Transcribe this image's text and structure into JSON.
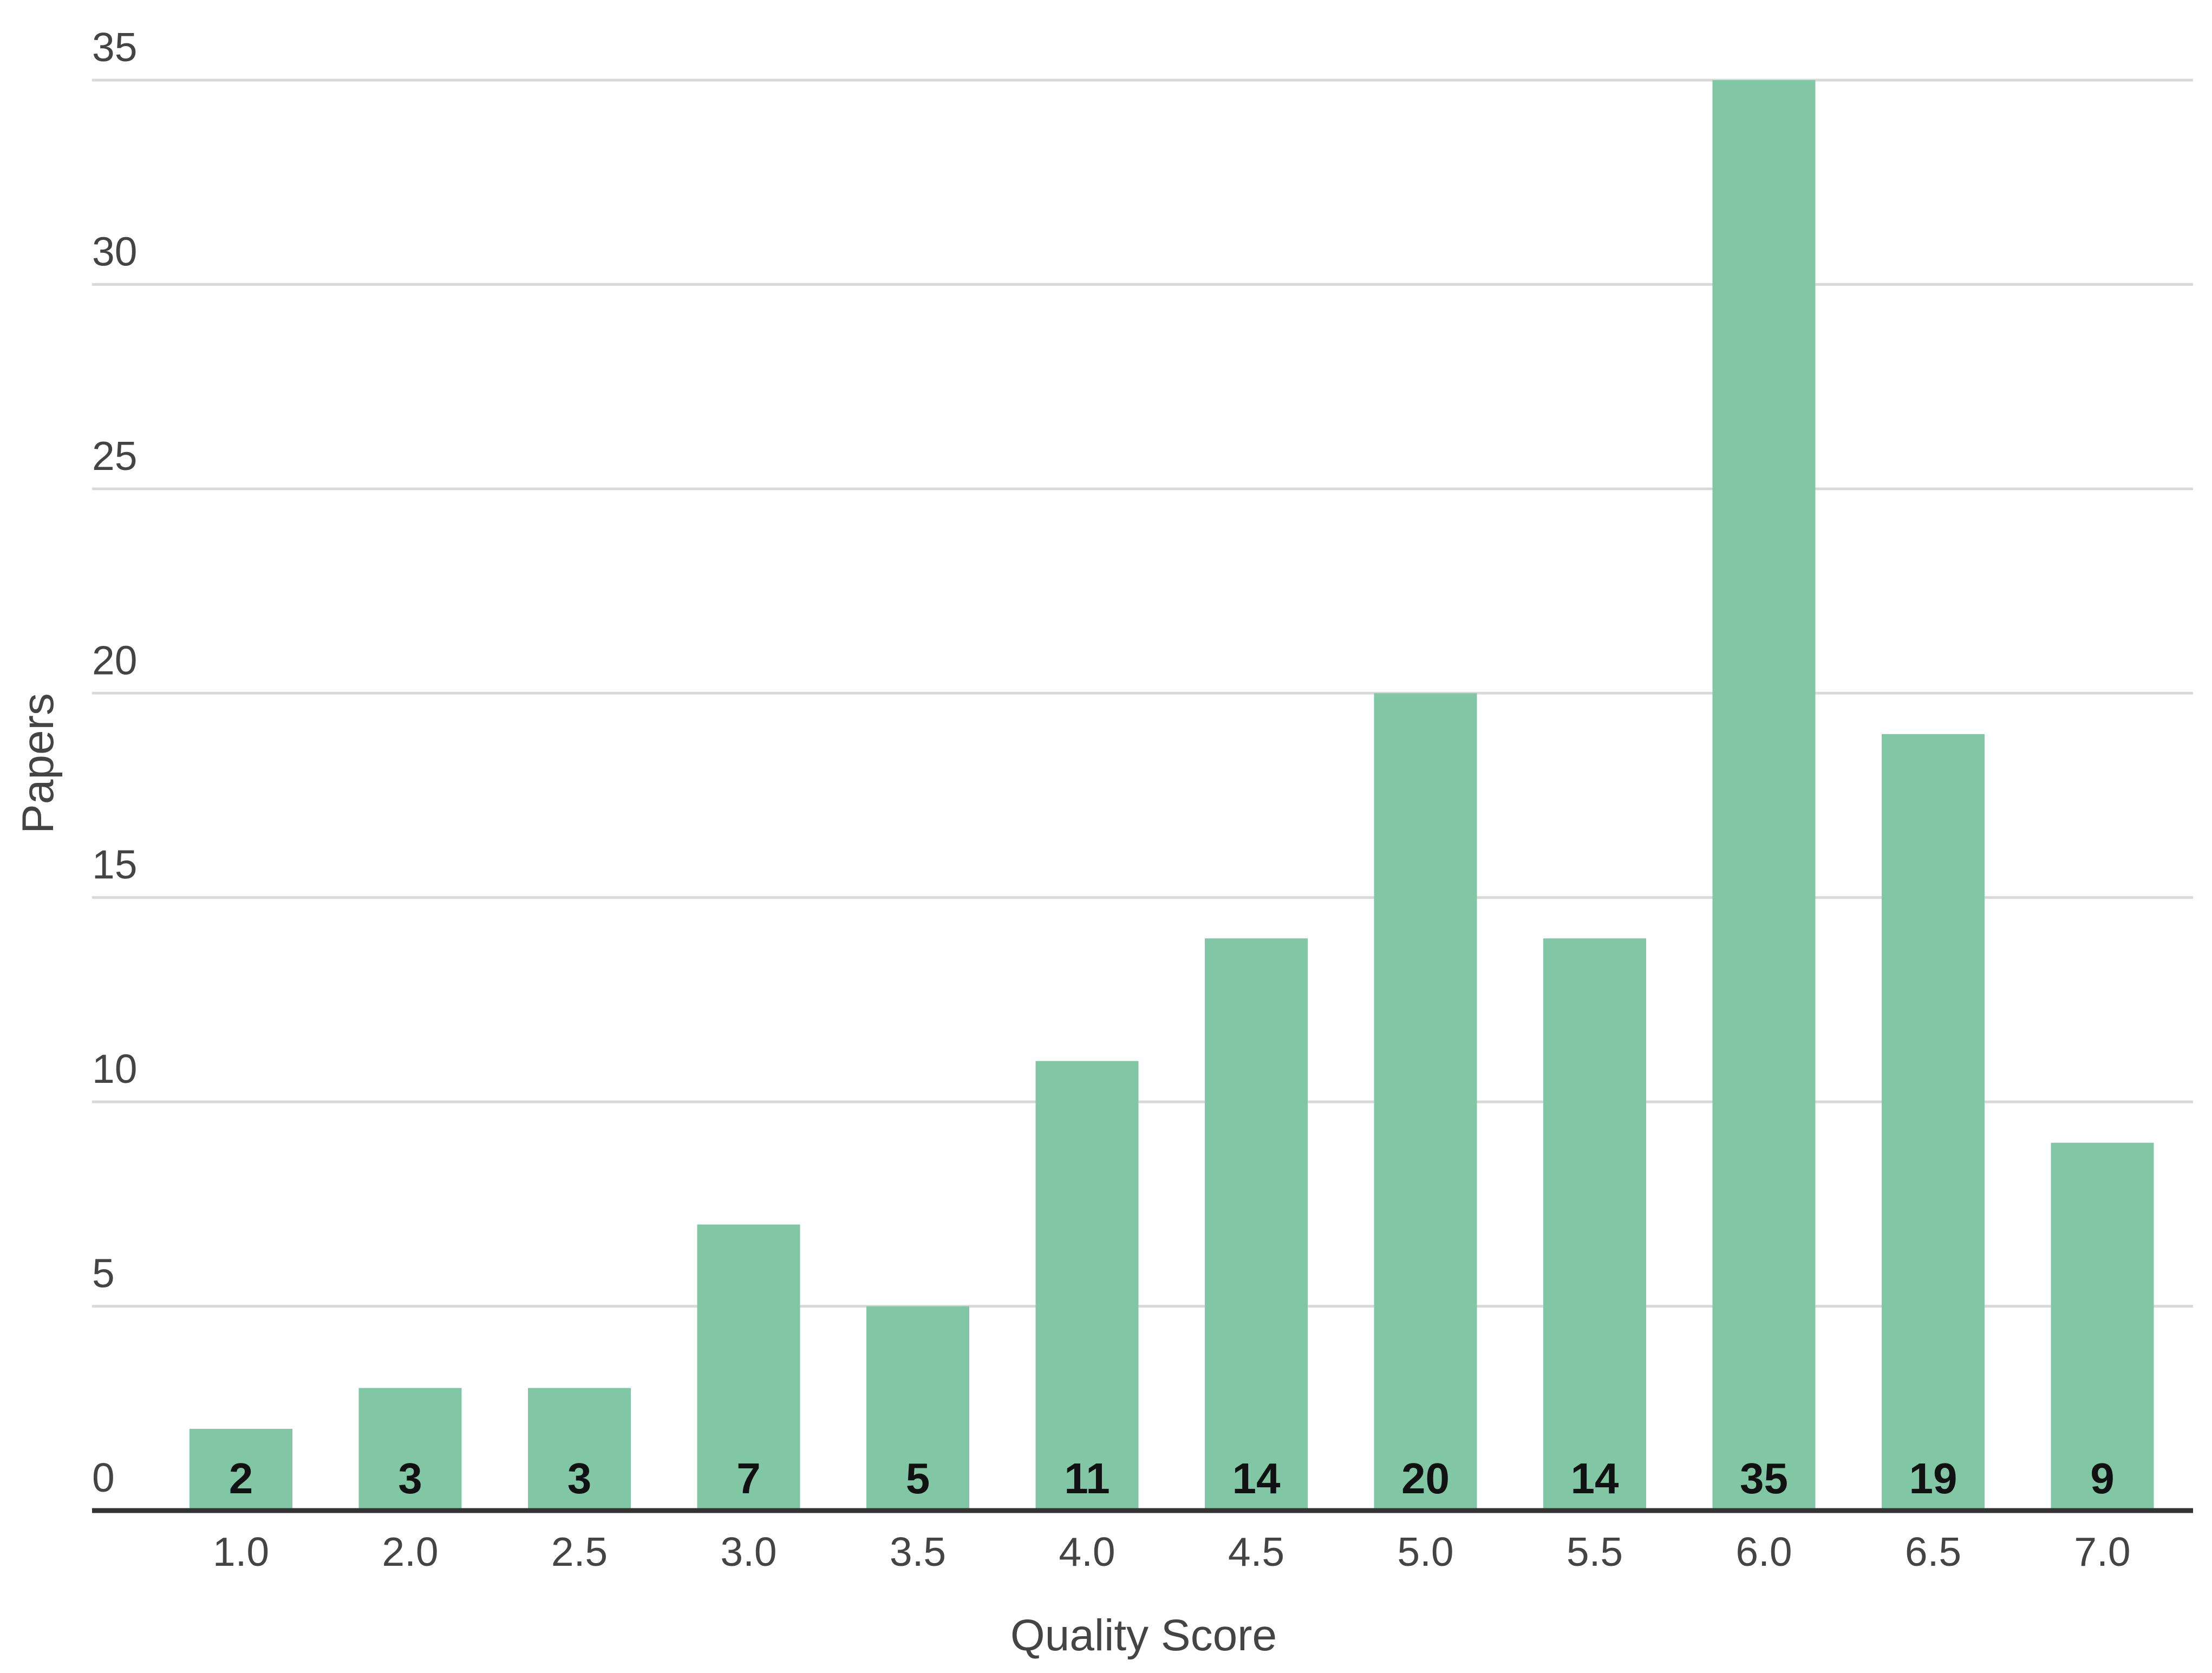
{
  "chart_data": {
    "type": "bar",
    "title": "",
    "xlabel": "Quality Score",
    "ylabel": "Papers",
    "categories": [
      "1.0",
      "2.0",
      "2.5",
      "3.0",
      "3.5",
      "4.0",
      "4.5",
      "5.0",
      "5.5",
      "6.0",
      "6.5",
      "7.0"
    ],
    "values": [
      2,
      3,
      3,
      7,
      5,
      11,
      14,
      20,
      14,
      35,
      19,
      9
    ],
    "ylim": [
      0,
      35
    ],
    "yticks": [
      0,
      5,
      10,
      15,
      20,
      25,
      30,
      35
    ],
    "grid": true,
    "legend": "none",
    "data_labels": true,
    "bar_color": "#81c7a5",
    "gridline_color": "#d9d9d9",
    "axis_color": "#333333"
  }
}
